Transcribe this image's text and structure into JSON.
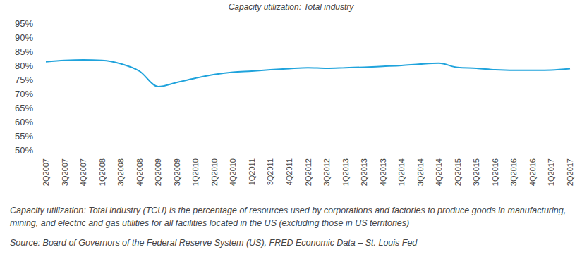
{
  "chart_data": {
    "type": "line",
    "title": "Capacity utilization: Total industry",
    "annotations": [
      "Capacity utilization: Total industry (TCU) is the percentage of resources used by corporations and factories to produce goods in manufacturing, mining, and electric and gas utilities for all facilities located in the US (excluding those in US territories)",
      "Source: Board of Governors of the Federal Reserve System (US), FRED Economic Data – St. Louis Fed"
    ],
    "categories": [
      "2Q2007",
      "3Q2007",
      "4Q2007",
      "1Q2008",
      "3Q2008",
      "4Q2008",
      "2Q2009",
      "3Q2009",
      "1Q2010",
      "2Q2010",
      "4Q2010",
      "1Q2011",
      "3Q2011",
      "4Q2011",
      "2Q2012",
      "3Q2012",
      "1Q2013",
      "2Q2013",
      "4Q2013",
      "1Q2014",
      "3Q2014",
      "4Q2014",
      "2Q2015",
      "3Q2015",
      "1Q2016",
      "3Q2016",
      "4Q2016",
      "1Q2017",
      "2Q2017"
    ],
    "values": [
      81.3,
      81.8,
      82.0,
      81.8,
      80.6,
      78.0,
      72.5,
      74.0,
      75.5,
      76.8,
      77.6,
      78.0,
      78.5,
      78.9,
      79.2,
      79.0,
      79.2,
      79.4,
      79.7,
      80.0,
      80.5,
      80.8,
      79.3,
      79.0,
      78.5,
      78.3,
      78.3,
      78.4,
      78.9
    ],
    "color": "#1fa3dc",
    "ylim": [
      50,
      95
    ],
    "yticks": [
      {
        "value": 50,
        "label": "50%"
      },
      {
        "value": 55,
        "label": "55%"
      },
      {
        "value": 60,
        "label": "60%"
      },
      {
        "value": 65,
        "label": "65%"
      },
      {
        "value": 70,
        "label": "70%"
      },
      {
        "value": 75,
        "label": "75%"
      },
      {
        "value": 80,
        "label": "80%"
      },
      {
        "value": 85,
        "label": "85%"
      },
      {
        "value": 90,
        "label": "90%"
      },
      {
        "value": 95,
        "label": "95%"
      }
    ],
    "grid": false
  }
}
